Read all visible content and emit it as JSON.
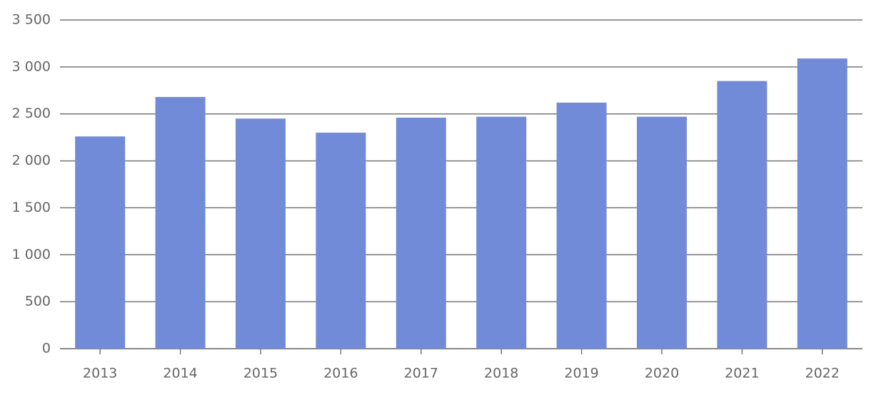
{
  "chart_data": {
    "type": "bar",
    "categories": [
      "2013",
      "2014",
      "2015",
      "2016",
      "2017",
      "2018",
      "2019",
      "2020",
      "2021",
      "2022"
    ],
    "values": [
      2260,
      2680,
      2450,
      2300,
      2460,
      2470,
      2620,
      2470,
      2850,
      3090
    ],
    "color": "#728bd8",
    "ylim": [
      0,
      3500
    ],
    "yticks": [
      0,
      500,
      {
        "value": 1000,
        "label": "1 000"
      },
      {
        "value": 1500,
        "label": "1 500"
      },
      {
        "value": 2000,
        "label": "2 000"
      },
      {
        "value": 2500,
        "label": "2 500"
      },
      {
        "value": 3000,
        "label": "3 000"
      },
      {
        "value": 3500,
        "label": "3 500"
      }
    ],
    "grid": true
  }
}
